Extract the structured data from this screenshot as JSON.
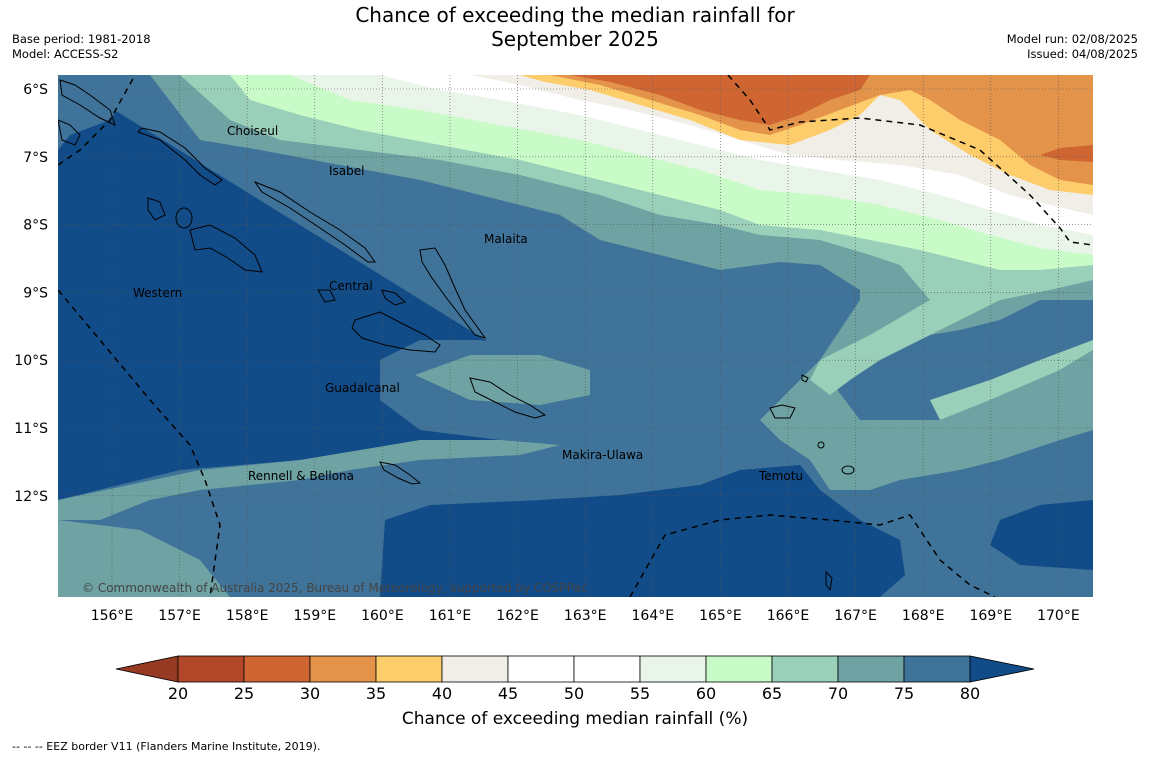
{
  "header": {
    "title_line1": "Chance of exceeding the median rainfall for",
    "title_line2": "September 2025",
    "base_period": "Base period: 1981-2018",
    "model": "Model: ACCESS-S2",
    "model_run": "Model run: 02/08/2025",
    "issued": "Issued: 04/08/2025"
  },
  "map": {
    "lat_labels": [
      "6°S",
      "7°S",
      "8°S",
      "9°S",
      "10°S",
      "11°S",
      "12°S"
    ],
    "lon_labels": [
      "156°E",
      "157°E",
      "158°E",
      "159°E",
      "160°E",
      "161°E",
      "162°E",
      "163°E",
      "164°E",
      "165°E",
      "166°E",
      "167°E",
      "168°E",
      "169°E",
      "170°E"
    ],
    "region_labels": [
      "Choiseul",
      "Isabel",
      "Malaita",
      "Western",
      "Central",
      "Guadalcanal",
      "Makira-Ulawa",
      "Rennell & Bellona",
      "Temotu"
    ],
    "copyright": "© Commonwealth of Australia 2025, Bureau of Meteorology, supported by COSPPac"
  },
  "legend": {
    "title": "Chance of exceeding median rainfall (%)",
    "ticks": [
      "20",
      "25",
      "30",
      "35",
      "40",
      "45",
      "50",
      "55",
      "60",
      "65",
      "70",
      "75",
      "80"
    ],
    "colors": [
      "#b1482a",
      "#cf6632",
      "#e3944a",
      "#fdcd6c",
      "#f1eee8",
      "#ffffff",
      "#ffffff",
      "#eaf5ea",
      "#c9fbc9",
      "#9acfb9",
      "#6ea2a3",
      "#3f7399"
    ],
    "low_extend_color": "#973a24",
    "high_extend_color": "#124c88"
  },
  "footer": {
    "eez_note": "--  --  -- EEZ border V11 (Flanders Marine Institute, 2019)."
  }
}
